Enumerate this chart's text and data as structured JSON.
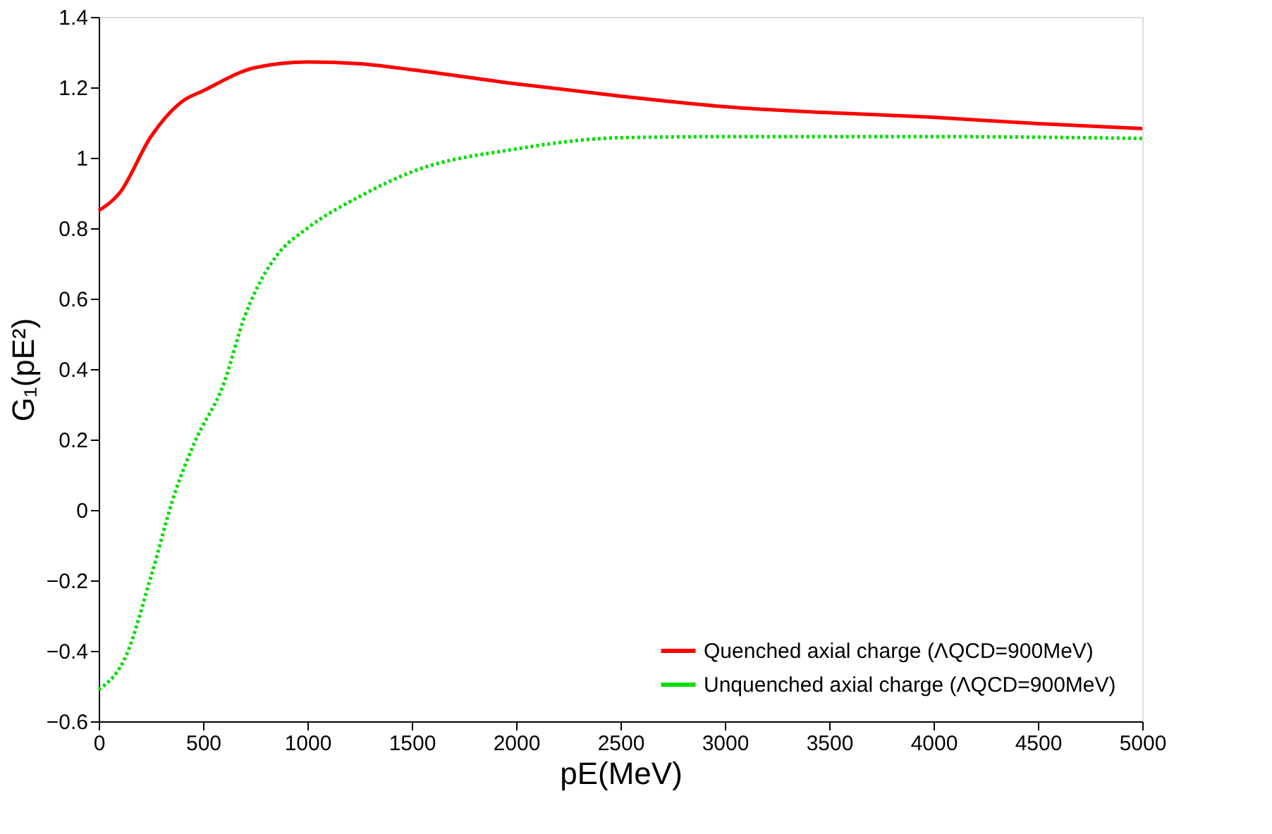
{
  "chart_data": {
    "type": "line",
    "xlabel": "pE(MeV)",
    "ylabel": "G₁(pE²)",
    "xlim": [
      0,
      5000
    ],
    "xticks": [
      0,
      500,
      1000,
      1500,
      2000,
      2500,
      3000,
      3500,
      4000,
      4500,
      5000
    ],
    "ylim": [
      -0.6,
      1.4
    ],
    "yticks": [
      -0.6,
      -0.4,
      -0.2,
      0,
      0.2,
      0.4,
      0.6,
      0.8,
      1,
      1.2,
      1.4
    ],
    "grid": false,
    "legend": "bottom right",
    "marker": "none",
    "series": [
      {
        "name": "Quenched axial charge (ΛQCD=900MeV)",
        "color": "#ff0000",
        "line_style": "solid",
        "x": [
          0,
          100,
          250,
          400,
          500,
          750,
          1000,
          1250,
          1500,
          2000,
          2500,
          3000,
          3500,
          4000,
          4500,
          5000
        ],
        "values": [
          0.85,
          0.9,
          1.06,
          1.16,
          1.19,
          1.256,
          1.272,
          1.267,
          1.25,
          1.21,
          1.175,
          1.145,
          1.128,
          1.115,
          1.097,
          1.083
        ]
      },
      {
        "name": "Unquenched axial charge (ΛQCD=900MeV)",
        "color": "#00dd00",
        "line_style": "dotted",
        "x": [
          0,
          134,
          250,
          366,
          458,
          600,
          700,
          750,
          850,
          1000,
          1250,
          1500,
          2000,
          2500,
          3000,
          4000,
          5000
        ],
        "values": [
          -0.51,
          -0.41,
          -0.19,
          0.05,
          0.19,
          0.36,
          0.55,
          0.62,
          0.72,
          0.8,
          0.89,
          0.96,
          1.025,
          1.057,
          1.06,
          1.06,
          1.055
        ]
      }
    ]
  }
}
